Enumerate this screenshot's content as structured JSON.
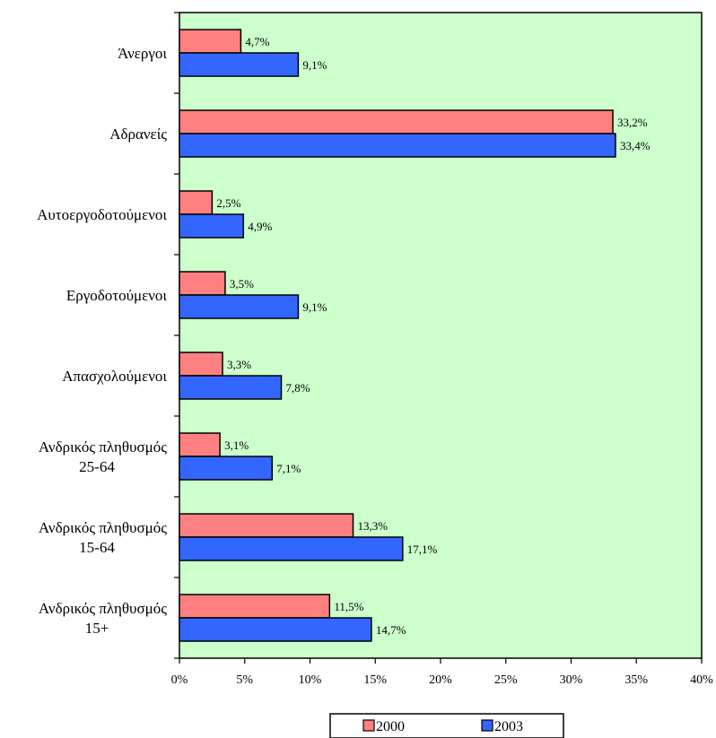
{
  "chart_data": {
    "type": "bar",
    "orientation": "horizontal",
    "categories": [
      [
        "Άνεργοι"
      ],
      [
        "Αδρανείς"
      ],
      [
        "Αυτοεργοδοτούμενοι"
      ],
      [
        "Εργοδοτούμενοι"
      ],
      [
        "Απασχολούμενοι"
      ],
      [
        "Ανδρικός πληθυσμός",
        "25-64"
      ],
      [
        "Ανδρικός πληθυσμός",
        "15-64"
      ],
      [
        "Ανδρικός πληθυσμός",
        "15+"
      ]
    ],
    "series": [
      {
        "name": "2000",
        "color": "#ff8080",
        "values": [
          4.7,
          33.2,
          2.5,
          3.5,
          3.3,
          3.1,
          13.3,
          11.5
        ],
        "labels": [
          "4,7%",
          "33,2%",
          "2,5%",
          "3,5%",
          "3,3%",
          "3,1%",
          "13,3%",
          "11,5%"
        ]
      },
      {
        "name": "2003",
        "color": "#3366ff",
        "values": [
          9.1,
          33.4,
          4.9,
          9.1,
          7.8,
          7.1,
          17.1,
          14.7
        ],
        "labels": [
          "9,1%",
          "33,4%",
          "4,9%",
          "9,1%",
          "7,8%",
          "7,1%",
          "17,1%",
          "14,7%"
        ]
      }
    ],
    "xlim": [
      0,
      40
    ],
    "x_ticks": [
      0,
      5,
      10,
      15,
      20,
      25,
      30,
      35,
      40
    ],
    "x_tick_labels": [
      "0%",
      "5%",
      "10%",
      "15%",
      "20%",
      "25%",
      "30%",
      "35%",
      "40%"
    ],
    "plot_background": "#ccffcc",
    "grid": false,
    "legend_position": "bottom"
  }
}
